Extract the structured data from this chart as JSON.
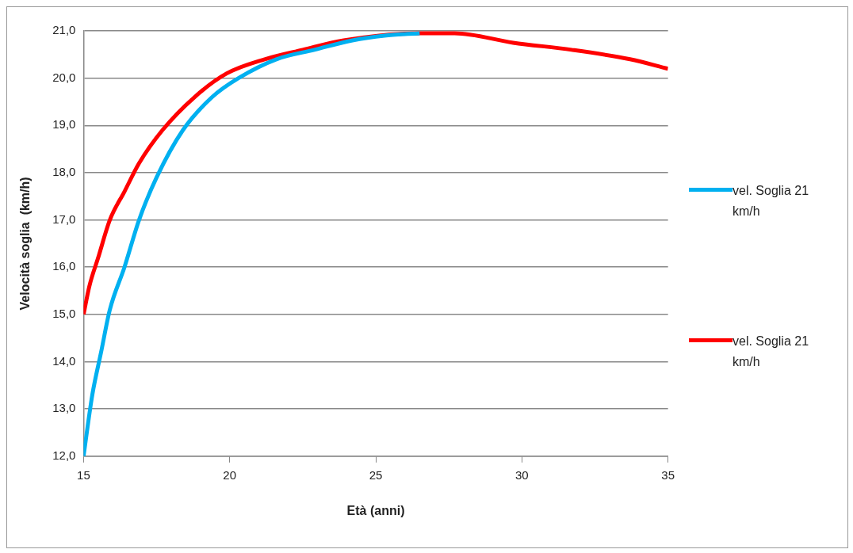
{
  "chart_data": {
    "type": "line",
    "xlabel": "Età (anni)",
    "ylabel": "Velocità soglia  (km/h)",
    "xlim": [
      15,
      35
    ],
    "xticks": [
      15,
      20,
      25,
      30,
      35
    ],
    "ylim": [
      12,
      21
    ],
    "yticks": [
      {
        "value": 12,
        "label": "12,0"
      },
      {
        "value": 13,
        "label": "13,0"
      },
      {
        "value": 14,
        "label": "14,0"
      },
      {
        "value": 15,
        "label": "15,0"
      },
      {
        "value": 16,
        "label": "16,0"
      },
      {
        "value": 17,
        "label": "17,0"
      },
      {
        "value": 18,
        "label": "18,0"
      },
      {
        "value": 19,
        "label": "19,0"
      },
      {
        "value": 20,
        "label": "20,0"
      },
      {
        "value": 21,
        "label": "21,0"
      }
    ],
    "grid": "y",
    "legend": "right",
    "marker": "none",
    "line_style": "solid",
    "series": [
      {
        "name": "vel. Soglia 21 km/h",
        "color": "#00b0f0",
        "x": [
          15,
          15.3,
          15.6,
          15.9,
          16.4,
          16.9,
          17.5,
          18.4,
          19.4,
          20.3,
          21.6,
          22.9,
          24.2,
          25.3,
          26.5
        ],
        "values": [
          12.0,
          13.3,
          14.2,
          15.1,
          16.0,
          17.0,
          17.9,
          18.9,
          19.6,
          20.0,
          20.4,
          20.6,
          20.8,
          20.9,
          20.95
        ]
      },
      {
        "name": "vel. Soglia 21 km/h",
        "color": "#ff0000",
        "x": [
          15,
          15.2,
          15.5,
          15.9,
          16.4,
          16.9,
          17.7,
          18.8,
          19.9,
          21.2,
          22.5,
          23.9,
          26.5,
          27.7,
          29.7,
          31.7,
          33.7,
          35
        ],
        "values": [
          15.0,
          15.6,
          16.2,
          17.0,
          17.6,
          18.2,
          18.9,
          19.6,
          20.1,
          20.4,
          20.6,
          20.8,
          20.95,
          20.95,
          20.75,
          20.6,
          20.4,
          20.2
        ]
      }
    ]
  }
}
